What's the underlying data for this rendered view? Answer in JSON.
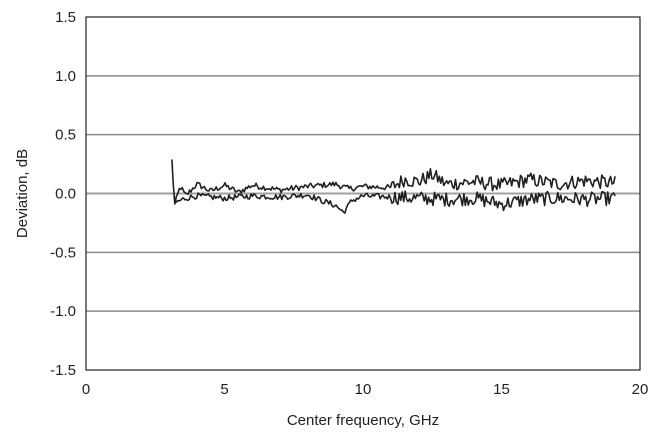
{
  "chart_data": {
    "type": "line",
    "xlabel": "Center frequency, GHz",
    "ylabel": "Deviation, dB",
    "xlim": [
      0,
      20
    ],
    "ylim": [
      -1.5,
      1.5
    ],
    "x_ticks": [
      "0",
      "5",
      "10",
      "15",
      "20"
    ],
    "y_ticks": [
      "1.5",
      "1.0",
      "0.5",
      "0.0",
      "-0.5",
      "-1.0",
      "-1.5"
    ],
    "grid": "horizontal",
    "series_color": "#231f20",
    "series": [
      {
        "x_range": [
          3.1,
          19.1
        ],
        "approx_points": [
          [
            3.1,
            0.29
          ],
          [
            3.2,
            -0.1
          ],
          [
            3.4,
            0.06
          ],
          [
            3.6,
            -0.02
          ],
          [
            4.0,
            0.08
          ],
          [
            4.5,
            0.02
          ],
          [
            5.0,
            0.07
          ],
          [
            5.5,
            0.01
          ],
          [
            6.0,
            0.07
          ],
          [
            7.0,
            0.03
          ],
          [
            8.0,
            0.06
          ],
          [
            9.0,
            0.08
          ],
          [
            9.5,
            0.04
          ],
          [
            10.0,
            0.06
          ],
          [
            11.0,
            0.05
          ],
          [
            11.5,
            0.12
          ],
          [
            12.0,
            0.1
          ],
          [
            12.5,
            0.16
          ],
          [
            13.0,
            0.08
          ],
          [
            14.0,
            0.1
          ],
          [
            15.0,
            0.07
          ],
          [
            16.0,
            0.12
          ],
          [
            17.0,
            0.08
          ],
          [
            18.0,
            0.11
          ],
          [
            18.5,
            0.1
          ],
          [
            19.1,
            0.09
          ]
        ]
      },
      {
        "x_range": [
          3.2,
          19.1
        ],
        "approx_points": [
          [
            3.2,
            -0.08
          ],
          [
            3.6,
            -0.04
          ],
          [
            4.0,
            -0.02
          ],
          [
            5.0,
            -0.04
          ],
          [
            6.0,
            -0.02
          ],
          [
            7.0,
            -0.03
          ],
          [
            8.0,
            -0.01
          ],
          [
            8.5,
            -0.06
          ],
          [
            9.0,
            -0.1
          ],
          [
            9.3,
            -0.16
          ],
          [
            9.6,
            -0.06
          ],
          [
            10.0,
            -0.02
          ],
          [
            11.0,
            -0.03
          ],
          [
            12.0,
            -0.04
          ],
          [
            13.0,
            -0.05
          ],
          [
            14.0,
            -0.04
          ],
          [
            15.0,
            -0.09
          ],
          [
            16.0,
            -0.05
          ],
          [
            17.0,
            -0.04
          ],
          [
            18.0,
            -0.05
          ],
          [
            19.1,
            -0.04
          ]
        ]
      }
    ]
  }
}
